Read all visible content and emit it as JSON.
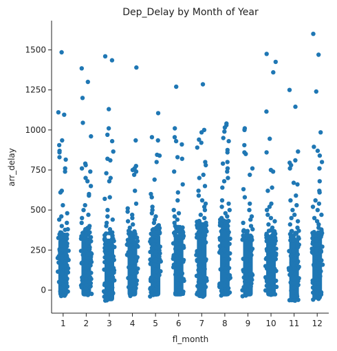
{
  "chart_data": {
    "type": "scatter",
    "subtype": "strip",
    "title": "Dep_Delay by Month of Year",
    "xlabel": "fl_month",
    "ylabel": "arr_delay",
    "categories": [
      "1",
      "2",
      "3",
      "4",
      "5",
      "6",
      "7",
      "8",
      "9",
      "10",
      "11",
      "12"
    ],
    "ylim": [
      -150,
      1680
    ],
    "yticks": [
      0,
      250,
      500,
      750,
      1000,
      1250,
      1500
    ],
    "grid": false,
    "legend": "none",
    "point_color": "#1f77b4",
    "series": [
      {
        "values": [
          {
            "month": "1",
            "dense_min": -40,
            "dense_max": 320,
            "outliers": [
              1485,
              1110,
              1095,
              935,
              905,
              870,
              860,
              830,
              815,
              760,
              740,
              620,
              610,
              530,
              480,
              460,
              440,
              420,
              400,
              380,
              360,
              345
            ]
          },
          {
            "month": "2",
            "dense_min": -40,
            "dense_max": 330,
            "outliers": [
              1385,
              1300,
              1200,
              1045,
              960,
              790,
              780,
              760,
              740,
              700,
              680,
              650,
              600,
              590,
              530,
              500,
              470,
              450,
              420,
              400,
              380,
              360
            ]
          },
          {
            "month": "3",
            "dense_min": -70,
            "dense_max": 300,
            "outliers": [
              1460,
              1435,
              1130,
              1010,
              970,
              930,
              865,
              820,
              810,
              730,
              700,
              680,
              580,
              570,
              500,
              460,
              440,
              420,
              400,
              380,
              360,
              340
            ]
          },
          {
            "month": "4",
            "dense_min": -40,
            "dense_max": 310,
            "outliers": [
              1390,
              935,
              775,
              760,
              750,
              740,
              720,
              620,
              540,
              510,
              490,
              470,
              450,
              430,
              410,
              390,
              370,
              350,
              330
            ]
          },
          {
            "month": "5",
            "dense_min": -40,
            "dense_max": 350,
            "outliers": [
              1105,
              955,
              935,
              845,
              840,
              800,
              690,
              600,
              580,
              520,
              500,
              480,
              460,
              440,
              420,
              400,
              380,
              360
            ]
          },
          {
            "month": "6",
            "dense_min": -40,
            "dense_max": 350,
            "outliers": [
              1270,
              1010,
              955,
              930,
              910,
              830,
              820,
              740,
              660,
              610,
              560,
              500,
              480,
              460,
              440,
              420,
              400,
              380,
              360
            ]
          },
          {
            "month": "7",
            "dense_min": -50,
            "dense_max": 380,
            "outliers": [
              1285,
              1000,
              985,
              940,
              920,
              890,
              800,
              780,
              720,
              700,
              650,
              620,
              590,
              560,
              540,
              520,
              500,
              470,
              450,
              430,
              410,
              390
            ]
          },
          {
            "month": "8",
            "dense_min": -40,
            "dense_max": 390,
            "outliers": [
              1040,
              1030,
              1015,
              990,
              950,
              930,
              875,
              860,
              800,
              790,
              760,
              740,
              700,
              680,
              640,
              560,
              540,
              520,
              500,
              480,
              460,
              440,
              420,
              400
            ]
          },
          {
            "month": "9",
            "dense_min": -40,
            "dense_max": 320,
            "outliers": [
              1010,
              1000,
              905,
              860,
              850,
              760,
              720,
              630,
              580,
              540,
              500,
              460,
              440,
              420,
              400,
              380,
              360,
              340
            ]
          },
          {
            "month": "10",
            "dense_min": -40,
            "dense_max": 320,
            "outliers": [
              1475,
              1425,
              1360,
              1115,
              945,
              860,
              750,
              740,
              640,
              620,
              540,
              520,
              500,
              470,
              450,
              430,
              410,
              390,
              370,
              350
            ]
          },
          {
            "month": "11",
            "dense_min": -70,
            "dense_max": 310,
            "outliers": [
              1250,
              1145,
              865,
              810,
              795,
              780,
              760,
              670,
              660,
              590,
              560,
              530,
              500,
              470,
              450,
              430,
              410,
              390,
              370,
              350
            ]
          },
          {
            "month": "12",
            "dense_min": -60,
            "dense_max": 340,
            "outliers": [
              1600,
              1470,
              1240,
              985,
              895,
              870,
              840,
              800,
              760,
              680,
              620,
              610,
              560,
              540,
              520,
              500,
              470,
              450,
              430,
              410,
              390,
              370
            ]
          }
        ]
      }
    ]
  }
}
